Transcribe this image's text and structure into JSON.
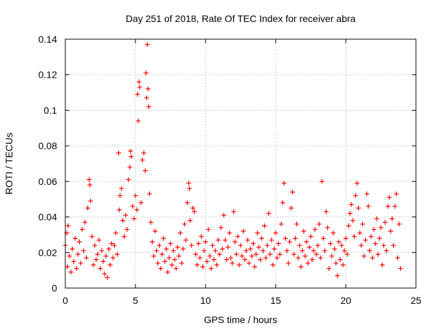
{
  "chart_data": {
    "type": "scatter",
    "title": "Day 251 of 2018, Rate Of TEC Index for receiver abra",
    "xlabel": "GPS time / hours",
    "ylabel": "ROTI / TECUs",
    "xlim": [
      0,
      25
    ],
    "ylim": [
      0,
      0.14
    ],
    "xticks": [
      0,
      5,
      10,
      15,
      20,
      25
    ],
    "xtick_labels": [
      "0",
      "5",
      "10",
      "15",
      "20",
      "25"
    ],
    "yticks": [
      0,
      0.02,
      0.04,
      0.06,
      0.08,
      0.1,
      0.12,
      0.14
    ],
    "ytick_labels": [
      "0",
      "0.02",
      "0.04",
      "0.06",
      "0.08",
      "0.1",
      "0.12",
      "0.14"
    ],
    "grid": true,
    "marker": "plus",
    "color": "#ff0000",
    "series": [
      {
        "name": "ROTI",
        "points": [
          [
            0.0,
            0.024
          ],
          [
            0.1,
            0.031
          ],
          [
            0.15,
            0.012
          ],
          [
            0.2,
            0.035
          ],
          [
            0.3,
            0.018
          ],
          [
            0.4,
            0.009
          ],
          [
            0.5,
            0.022
          ],
          [
            0.6,
            0.015
          ],
          [
            0.7,
            0.028
          ],
          [
            0.8,
            0.011
          ],
          [
            0.9,
            0.019
          ],
          [
            1.0,
            0.026
          ],
          [
            1.1,
            0.014
          ],
          [
            1.2,
            0.033
          ],
          [
            1.3,
            0.021
          ],
          [
            1.4,
            0.037
          ],
          [
            1.5,
            0.017
          ],
          [
            1.6,
            0.045
          ],
          [
            1.7,
            0.061
          ],
          [
            1.75,
            0.058
          ],
          [
            1.8,
            0.049
          ],
          [
            1.9,
            0.029
          ],
          [
            2.0,
            0.013
          ],
          [
            2.1,
            0.024
          ],
          [
            2.2,
            0.016
          ],
          [
            2.3,
            0.019
          ],
          [
            2.4,
            0.027
          ],
          [
            2.5,
            0.011
          ],
          [
            2.6,
            0.021
          ],
          [
            2.7,
            0.015
          ],
          [
            2.8,
            0.008
          ],
          [
            2.9,
            0.018
          ],
          [
            3.0,
            0.006
          ],
          [
            3.1,
            0.022
          ],
          [
            3.2,
            0.013
          ],
          [
            3.3,
            0.025
          ],
          [
            3.4,
            0.017
          ],
          [
            3.5,
            0.024
          ],
          [
            3.6,
            0.031
          ],
          [
            3.7,
            0.019
          ],
          [
            3.8,
            0.076
          ],
          [
            3.85,
            0.044
          ],
          [
            3.9,
            0.052
          ],
          [
            4.0,
            0.056
          ],
          [
            4.1,
            0.038
          ],
          [
            4.2,
            0.029
          ],
          [
            4.3,
            0.041
          ],
          [
            4.4,
            0.033
          ],
          [
            4.5,
            0.061
          ],
          [
            4.6,
            0.068
          ],
          [
            4.65,
            0.077
          ],
          [
            4.7,
            0.074
          ],
          [
            4.8,
            0.046
          ],
          [
            4.9,
            0.039
          ],
          [
            5.0,
            0.052
          ],
          [
            5.1,
            0.044
          ],
          [
            5.15,
            0.109
          ],
          [
            5.2,
            0.094
          ],
          [
            5.25,
            0.116
          ],
          [
            5.3,
            0.113
          ],
          [
            5.4,
            0.048
          ],
          [
            5.5,
            0.072
          ],
          [
            5.6,
            0.076
          ],
          [
            5.7,
            0.066
          ],
          [
            5.75,
            0.121
          ],
          [
            5.8,
            0.107
          ],
          [
            5.85,
            0.137
          ],
          [
            5.9,
            0.112
          ],
          [
            5.95,
            0.102
          ],
          [
            6.0,
            0.053
          ],
          [
            6.1,
            0.037
          ],
          [
            6.2,
            0.026
          ],
          [
            6.3,
            0.018
          ],
          [
            6.4,
            0.032
          ],
          [
            6.5,
            0.021
          ],
          [
            6.6,
            0.014
          ],
          [
            6.7,
            0.024
          ],
          [
            6.8,
            0.011
          ],
          [
            6.9,
            0.019
          ],
          [
            7.0,
            0.028
          ],
          [
            7.1,
            0.015
          ],
          [
            7.2,
            0.022
          ],
          [
            7.3,
            0.009
          ],
          [
            7.4,
            0.017
          ],
          [
            7.5,
            0.025
          ],
          [
            7.6,
            0.013
          ],
          [
            7.7,
            0.021
          ],
          [
            7.8,
            0.016
          ],
          [
            7.9,
            0.011
          ],
          [
            8.0,
            0.023
          ],
          [
            8.1,
            0.018
          ],
          [
            8.2,
            0.031
          ],
          [
            8.3,
            0.014
          ],
          [
            8.4,
            0.022
          ],
          [
            8.5,
            0.036
          ],
          [
            8.6,
            0.027
          ],
          [
            8.7,
            0.048
          ],
          [
            8.8,
            0.059
          ],
          [
            8.85,
            0.056
          ],
          [
            8.9,
            0.038
          ],
          [
            9.0,
            0.024
          ],
          [
            9.1,
            0.045
          ],
          [
            9.2,
            0.043
          ],
          [
            9.3,
            0.019
          ],
          [
            9.4,
            0.013
          ],
          [
            9.5,
            0.025
          ],
          [
            9.6,
            0.017
          ],
          [
            9.7,
            0.029
          ],
          [
            9.8,
            0.012
          ],
          [
            9.9,
            0.021
          ],
          [
            10.0,
            0.026
          ],
          [
            10.1,
            0.015
          ],
          [
            10.2,
            0.033
          ],
          [
            10.3,
            0.018
          ],
          [
            10.4,
            0.011
          ],
          [
            10.5,
            0.024
          ],
          [
            10.6,
            0.016
          ],
          [
            10.7,
            0.021
          ],
          [
            10.8,
            0.013
          ],
          [
            10.9,
            0.027
          ],
          [
            11.0,
            0.019
          ],
          [
            11.1,
            0.034
          ],
          [
            11.2,
            0.022
          ],
          [
            11.3,
            0.041
          ],
          [
            11.4,
            0.027
          ],
          [
            11.5,
            0.016
          ],
          [
            11.6,
            0.023
          ],
          [
            11.7,
            0.031
          ],
          [
            11.8,
            0.017
          ],
          [
            11.9,
            0.014
          ],
          [
            12.0,
            0.043
          ],
          [
            12.1,
            0.026
          ],
          [
            12.2,
            0.019
          ],
          [
            12.3,
            0.029
          ],
          [
            12.4,
            0.013
          ],
          [
            12.5,
            0.024
          ],
          [
            12.6,
            0.018
          ],
          [
            12.7,
            0.032
          ],
          [
            12.8,
            0.016
          ],
          [
            12.9,
            0.021
          ],
          [
            13.0,
            0.027
          ],
          [
            13.1,
            0.014
          ],
          [
            13.2,
            0.022
          ],
          [
            13.3,
            0.018
          ],
          [
            13.4,
            0.025
          ],
          [
            13.5,
            0.012
          ],
          [
            13.6,
            0.019
          ],
          [
            13.7,
            0.031
          ],
          [
            13.8,
            0.023
          ],
          [
            13.9,
            0.016
          ],
          [
            14.0,
            0.028
          ],
          [
            14.1,
            0.021
          ],
          [
            14.2,
            0.035
          ],
          [
            14.3,
            0.017
          ],
          [
            14.4,
            0.024
          ],
          [
            14.5,
            0.042
          ],
          [
            14.6,
            0.019
          ],
          [
            14.7,
            0.027
          ],
          [
            14.8,
            0.013
          ],
          [
            14.9,
            0.022
          ],
          [
            15.0,
            0.031
          ],
          [
            15.1,
            0.017
          ],
          [
            15.2,
            0.025
          ],
          [
            15.3,
            0.019
          ],
          [
            15.4,
            0.036
          ],
          [
            15.5,
            0.048
          ],
          [
            15.6,
            0.059
          ],
          [
            15.7,
            0.028
          ],
          [
            15.8,
            0.021
          ],
          [
            15.9,
            0.014
          ],
          [
            16.0,
            0.026
          ],
          [
            16.1,
            0.045
          ],
          [
            16.2,
            0.054
          ],
          [
            16.3,
            0.019
          ],
          [
            16.4,
            0.028
          ],
          [
            16.5,
            0.036
          ],
          [
            16.6,
            0.017
          ],
          [
            16.7,
            0.024
          ],
          [
            16.8,
            0.012
          ],
          [
            16.9,
            0.021
          ],
          [
            17.0,
            0.032
          ],
          [
            17.1,
            0.018
          ],
          [
            17.2,
            0.026
          ],
          [
            17.3,
            0.014
          ],
          [
            17.4,
            0.023
          ],
          [
            17.5,
            0.029
          ],
          [
            17.6,
            0.016
          ],
          [
            17.7,
            0.021
          ],
          [
            17.8,
            0.033
          ],
          [
            17.9,
            0.019
          ],
          [
            18.0,
            0.024
          ],
          [
            18.1,
            0.036
          ],
          [
            18.2,
            0.017
          ],
          [
            18.3,
            0.06
          ],
          [
            18.4,
            0.028
          ],
          [
            18.5,
            0.021
          ],
          [
            18.6,
            0.043
          ],
          [
            18.7,
            0.034
          ],
          [
            18.8,
            0.011
          ],
          [
            18.9,
            0.025
          ],
          [
            19.0,
            0.018
          ],
          [
            19.1,
            0.031
          ],
          [
            19.2,
            0.022
          ],
          [
            19.3,
            0.014
          ],
          [
            19.4,
            0.007
          ],
          [
            19.5,
            0.026
          ],
          [
            19.6,
            0.016
          ],
          [
            19.7,
            0.024
          ],
          [
            19.8,
            0.013
          ],
          [
            19.9,
            0.021
          ],
          [
            20.0,
            0.028
          ],
          [
            20.1,
            0.019
          ],
          [
            20.2,
            0.035
          ],
          [
            20.3,
            0.042
          ],
          [
            20.4,
            0.047
          ],
          [
            20.5,
            0.038
          ],
          [
            20.6,
            0.029
          ],
          [
            20.7,
            0.052
          ],
          [
            20.8,
            0.059
          ],
          [
            20.9,
            0.045
          ],
          [
            21.0,
            0.031
          ],
          [
            21.1,
            0.024
          ],
          [
            21.2,
            0.036
          ],
          [
            21.3,
            0.018
          ],
          [
            21.4,
            0.027
          ],
          [
            21.5,
            0.053
          ],
          [
            21.6,
            0.046
          ],
          [
            21.7,
            0.021
          ],
          [
            21.8,
            0.029
          ],
          [
            21.9,
            0.017
          ],
          [
            22.0,
            0.033
          ],
          [
            22.1,
            0.025
          ],
          [
            22.2,
            0.039
          ],
          [
            22.3,
            0.019
          ],
          [
            22.4,
            0.028
          ],
          [
            22.5,
            0.034
          ],
          [
            22.6,
            0.013
          ],
          [
            22.7,
            0.024
          ],
          [
            22.8,
            0.037
          ],
          [
            22.9,
            0.021
          ],
          [
            23.0,
            0.046
          ],
          [
            23.1,
            0.051
          ],
          [
            23.2,
            0.032
          ],
          [
            23.3,
            0.039
          ],
          [
            23.4,
            0.024
          ],
          [
            23.5,
            0.046
          ],
          [
            23.6,
            0.053
          ],
          [
            23.7,
            0.017
          ],
          [
            23.8,
            0.036
          ],
          [
            23.9,
            0.011
          ]
        ]
      }
    ]
  }
}
